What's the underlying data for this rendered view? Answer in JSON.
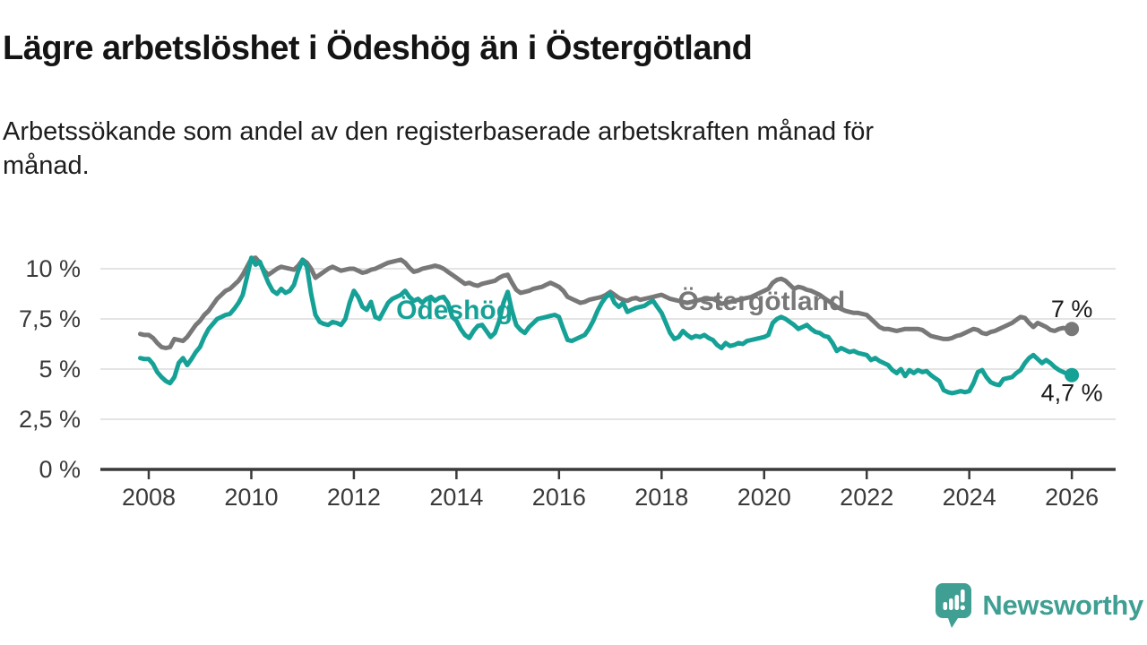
{
  "header": {
    "title": "Lägre arbetslöshet i Ödeshög än i Östergötland",
    "subtitle": "Arbetssökande som andel av den registerbaserade arbetskraften månad för månad."
  },
  "branding": {
    "name": "Newsworthy"
  },
  "colors": {
    "teal": "#16a197",
    "gray": "#787878",
    "axis": "#3a3a3a",
    "grid": "#dcdcdc",
    "label_text": "#1a1a1a",
    "logo_teal": "#3f9f93"
  },
  "chart_data": {
    "type": "line",
    "title": "Lägre arbetslöshet i Ödeshög än i Östergötland",
    "subtitle": "Arbetssökande som andel av den registerbaserade arbetskraften månad för månad.",
    "unit": "%",
    "x_start_year": 2007.8333,
    "x_step_years": 0.0833,
    "grid": true,
    "legend_position": "inline-labels",
    "x_axis": {
      "tick_years": [
        2008,
        2010,
        2012,
        2014,
        2016,
        2018,
        2020,
        2022,
        2024,
        2026
      ]
    },
    "y_axis": {
      "range": [
        0,
        11
      ],
      "ticks": [
        {
          "value": 0,
          "label": "0 %"
        },
        {
          "value": 2.5,
          "label": "2,5 %"
        },
        {
          "value": 5,
          "label": "5 %"
        },
        {
          "value": 7.5,
          "label": "7,5 %"
        },
        {
          "value": 10,
          "label": "10 %"
        }
      ]
    },
    "series": [
      {
        "id": "ostergotland",
        "name": "Östergötland",
        "color": "#787878",
        "end_label": "7 %",
        "end_value": 7.0,
        "end_label_dy": -13,
        "label_year": 2019.95,
        "label_value": 7.95,
        "values": [
          6.75,
          6.7,
          6.7,
          6.55,
          6.3,
          6.1,
          6.05,
          6.1,
          6.5,
          6.45,
          6.4,
          6.6,
          6.9,
          7.2,
          7.4,
          7.7,
          7.9,
          8.2,
          8.5,
          8.7,
          8.9,
          9.0,
          9.2,
          9.4,
          9.7,
          10.1,
          10.5,
          10.55,
          10.3,
          9.9,
          9.7,
          9.85,
          10.0,
          10.1,
          10.05,
          10.0,
          9.95,
          10.15,
          10.45,
          10.3,
          10.0,
          9.55,
          9.7,
          9.85,
          10.0,
          10.1,
          10.0,
          9.9,
          9.95,
          10.0,
          10.0,
          9.9,
          9.8,
          9.85,
          9.95,
          10.0,
          10.1,
          10.2,
          10.3,
          10.35,
          10.4,
          10.45,
          10.3,
          10.05,
          9.85,
          9.9,
          10.0,
          10.05,
          10.1,
          10.15,
          10.1,
          10.0,
          9.85,
          9.7,
          9.55,
          9.4,
          9.25,
          9.3,
          9.2,
          9.15,
          9.25,
          9.3,
          9.35,
          9.4,
          9.55,
          9.65,
          9.7,
          9.3,
          8.95,
          8.8,
          8.85,
          8.9,
          9.0,
          9.05,
          9.1,
          9.2,
          9.3,
          9.2,
          9.1,
          8.9,
          8.6,
          8.5,
          8.4,
          8.3,
          8.35,
          8.45,
          8.5,
          8.55,
          8.6,
          8.7,
          8.85,
          8.7,
          8.55,
          8.45,
          8.4,
          8.5,
          8.55,
          8.45,
          8.5,
          8.55,
          8.6,
          8.65,
          8.7,
          8.6,
          8.5,
          8.45,
          8.4,
          8.35,
          8.3,
          8.35,
          8.4,
          8.45,
          8.5,
          8.5,
          8.5,
          8.4,
          8.25,
          8.3,
          8.35,
          8.4,
          8.45,
          8.5,
          8.55,
          8.6,
          8.7,
          8.8,
          8.9,
          9.0,
          9.3,
          9.45,
          9.5,
          9.4,
          9.2,
          9.0,
          9.1,
          9.05,
          8.95,
          8.9,
          8.8,
          8.7,
          8.55,
          8.4,
          8.25,
          8.1,
          8.0,
          7.9,
          7.85,
          7.8,
          7.8,
          7.75,
          7.7,
          7.5,
          7.3,
          7.1,
          7.0,
          7.0,
          6.95,
          6.9,
          6.95,
          7.0,
          7.0,
          7.0,
          7.0,
          6.95,
          6.8,
          6.65,
          6.6,
          6.55,
          6.5,
          6.5,
          6.55,
          6.65,
          6.7,
          6.8,
          6.9,
          7.0,
          6.95,
          6.8,
          6.75,
          6.85,
          6.9,
          7.0,
          7.1,
          7.2,
          7.3,
          7.45,
          7.6,
          7.55,
          7.3,
          7.1,
          7.3,
          7.2,
          7.1,
          6.95,
          6.9,
          7.0,
          7.05,
          7.0,
          7.0
        ]
      },
      {
        "id": "odeshog",
        "name": "Ödeshög",
        "color": "#16a197",
        "end_label": "4,7 %",
        "end_value": 4.7,
        "end_label_dy": 29,
        "label_year": 2013.96,
        "label_value": 7.5,
        "values": [
          5.55,
          5.5,
          5.5,
          5.25,
          4.85,
          4.6,
          4.4,
          4.3,
          4.6,
          5.3,
          5.55,
          5.2,
          5.5,
          5.85,
          6.1,
          6.6,
          7.0,
          7.25,
          7.5,
          7.6,
          7.7,
          7.75,
          8.0,
          8.3,
          8.7,
          9.6,
          10.55,
          10.2,
          10.35,
          9.8,
          9.3,
          8.9,
          8.75,
          9.0,
          8.8,
          8.9,
          9.2,
          9.9,
          10.45,
          10.1,
          8.75,
          7.7,
          7.35,
          7.25,
          7.2,
          7.35,
          7.3,
          7.2,
          7.5,
          8.3,
          8.9,
          8.6,
          8.1,
          7.95,
          8.35,
          7.6,
          7.5,
          7.9,
          8.3,
          8.5,
          8.6,
          8.7,
          8.9,
          8.6,
          8.4,
          8.5,
          8.3,
          8.5,
          8.6,
          8.4,
          8.55,
          8.6,
          8.3,
          7.6,
          7.4,
          7.0,
          6.7,
          6.55,
          6.9,
          7.15,
          7.2,
          6.9,
          6.6,
          6.8,
          7.4,
          8.3,
          8.85,
          7.9,
          7.2,
          6.95,
          6.8,
          7.1,
          7.3,
          7.5,
          7.55,
          7.6,
          7.65,
          7.7,
          7.6,
          7.0,
          6.45,
          6.4,
          6.5,
          6.6,
          6.7,
          7.0,
          7.4,
          7.9,
          8.3,
          8.6,
          8.75,
          8.3,
          8.1,
          8.3,
          7.85,
          7.95,
          8.05,
          8.1,
          8.15,
          8.3,
          8.4,
          8.1,
          7.8,
          7.3,
          6.8,
          6.5,
          6.6,
          6.9,
          6.7,
          6.55,
          6.65,
          6.6,
          6.7,
          6.55,
          6.45,
          6.2,
          6.05,
          6.3,
          6.15,
          6.2,
          6.3,
          6.25,
          6.4,
          6.45,
          6.5,
          6.55,
          6.6,
          6.7,
          7.3,
          7.5,
          7.6,
          7.5,
          7.35,
          7.2,
          7.0,
          7.1,
          7.2,
          7.0,
          6.85,
          6.8,
          6.65,
          6.6,
          6.3,
          5.9,
          6.05,
          5.95,
          5.85,
          5.9,
          5.8,
          5.75,
          5.7,
          5.45,
          5.55,
          5.4,
          5.3,
          5.2,
          4.95,
          4.8,
          5.0,
          4.65,
          4.95,
          4.8,
          4.95,
          4.85,
          4.9,
          4.7,
          4.55,
          4.4,
          3.95,
          3.85,
          3.8,
          3.85,
          3.9,
          3.85,
          3.9,
          4.3,
          4.85,
          4.95,
          4.6,
          4.35,
          4.25,
          4.2,
          4.5,
          4.55,
          4.6,
          4.8,
          4.95,
          5.3,
          5.55,
          5.7,
          5.5,
          5.3,
          5.45,
          5.3,
          5.1,
          4.95,
          4.85,
          4.75,
          4.7
        ]
      }
    ]
  }
}
